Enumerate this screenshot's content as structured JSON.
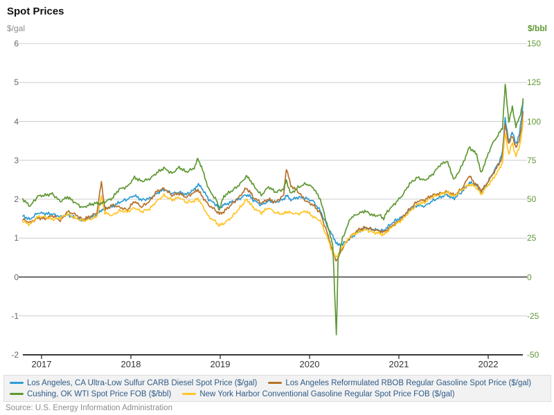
{
  "title": "Spot Prices",
  "axes": {
    "left": {
      "unit_label": "$/gal",
      "tick_labels": [
        "6",
        "5",
        "4",
        "3",
        "2",
        "1",
        "0",
        "-1",
        "-2"
      ]
    },
    "right": {
      "unit_label": "$/bbl",
      "tick_labels": [
        "150",
        "125",
        "100",
        "75",
        "50",
        "25",
        "0",
        "-25",
        "-50"
      ],
      "color": "#5D9732"
    },
    "x": {
      "tick_labels": [
        "2017",
        "2018",
        "2019",
        "2020",
        "2021",
        "2022"
      ]
    }
  },
  "source": "Source: U.S. Energy Information Administration",
  "chart_data": {
    "type": "line",
    "title": "Spot Prices",
    "xlabel": "",
    "ylabel_left": "$/gal",
    "ylabel_right": "$/bbl",
    "xlim": [
      2016.79,
      2022.39
    ],
    "ylim_left": [
      -2,
      6
    ],
    "ylim_right": [
      -50,
      150
    ],
    "grid": true,
    "legend_position": "bottom",
    "legend_rows": [
      [
        0,
        1
      ],
      [
        3,
        2
      ]
    ],
    "x_unit": "decimal year",
    "x": [
      2016.79,
      2016.87,
      2016.96,
      2017.04,
      2017.12,
      2017.21,
      2017.29,
      2017.37,
      2017.46,
      2017.54,
      2017.62,
      2017.67,
      2017.71,
      2017.79,
      2017.87,
      2017.96,
      2018.04,
      2018.12,
      2018.21,
      2018.29,
      2018.37,
      2018.46,
      2018.54,
      2018.62,
      2018.71,
      2018.75,
      2018.79,
      2018.87,
      2018.96,
      2018.99,
      2019.04,
      2019.12,
      2019.21,
      2019.29,
      2019.33,
      2019.37,
      2019.46,
      2019.54,
      2019.62,
      2019.71,
      2019.74,
      2019.79,
      2019.87,
      2019.96,
      2020.04,
      2020.12,
      2020.21,
      2020.26,
      2020.3,
      2020.32,
      2020.37,
      2020.46,
      2020.54,
      2020.62,
      2020.71,
      2020.79,
      2020.83,
      2020.87,
      2020.96,
      2021.04,
      2021.12,
      2021.21,
      2021.29,
      2021.37,
      2021.46,
      2021.54,
      2021.58,
      2021.62,
      2021.71,
      2021.79,
      2021.83,
      2021.87,
      2021.92,
      2021.96,
      2022.04,
      2022.12,
      2022.16,
      2022.19,
      2022.23,
      2022.27,
      2022.31,
      2022.35,
      2022.38,
      2022.39
    ],
    "series": [
      {
        "key": "la_ulsd_carb_diesel",
        "name": "Los Angeles, CA Ultra-Low Sulfur CARB Diesel Spot Price ($/gal)",
        "axis": "left",
        "unit": "$/gal",
        "color": "#2C9BD4",
        "values": [
          1.57,
          1.48,
          1.65,
          1.63,
          1.62,
          1.55,
          1.6,
          1.53,
          1.45,
          1.52,
          1.6,
          1.72,
          1.78,
          1.8,
          1.92,
          2.0,
          2.1,
          1.98,
          2.02,
          2.15,
          2.25,
          2.15,
          2.18,
          2.12,
          2.25,
          2.38,
          2.3,
          2.0,
          1.85,
          1.78,
          1.85,
          1.92,
          2.0,
          2.12,
          2.08,
          1.98,
          1.85,
          1.95,
          1.92,
          2.0,
          2.1,
          1.98,
          2.05,
          2.02,
          1.95,
          1.7,
          1.25,
          1.05,
          0.88,
          0.82,
          0.85,
          1.0,
          1.15,
          1.25,
          1.22,
          1.2,
          1.18,
          1.28,
          1.45,
          1.55,
          1.72,
          1.85,
          1.82,
          1.95,
          2.05,
          2.12,
          2.05,
          2.02,
          2.2,
          2.42,
          2.4,
          2.35,
          2.18,
          2.3,
          2.62,
          2.95,
          3.2,
          4.1,
          3.45,
          3.75,
          3.4,
          3.7,
          4.2,
          4.5
        ]
      },
      {
        "key": "la_rbob_regular_gasoline",
        "name": "Los Angeles Reformulated RBOB Regular Gasoline Spot Price ($/gal)",
        "axis": "left",
        "unit": "$/gal",
        "color": "#B5702A",
        "values": [
          1.48,
          1.4,
          1.52,
          1.5,
          1.58,
          1.45,
          1.68,
          1.62,
          1.48,
          1.55,
          1.65,
          2.45,
          1.72,
          1.85,
          1.8,
          1.72,
          1.95,
          1.8,
          1.95,
          2.2,
          2.28,
          2.1,
          2.15,
          2.05,
          2.18,
          2.25,
          2.1,
          1.85,
          1.7,
          1.62,
          1.68,
          1.85,
          2.05,
          2.28,
          2.2,
          2.05,
          1.9,
          2.0,
          1.92,
          2.1,
          2.8,
          2.35,
          2.2,
          1.95,
          1.85,
          1.65,
          1.05,
          0.65,
          0.42,
          0.5,
          0.75,
          1.05,
          1.2,
          1.28,
          1.22,
          1.18,
          1.15,
          1.22,
          1.38,
          1.52,
          1.75,
          1.95,
          1.98,
          2.1,
          2.15,
          2.2,
          2.15,
          2.1,
          2.28,
          2.62,
          2.45,
          2.38,
          2.22,
          2.32,
          2.6,
          2.9,
          3.1,
          3.95,
          3.4,
          3.65,
          3.3,
          3.55,
          3.95,
          4.25
        ]
      },
      {
        "key": "nyh_conventional_gasoline",
        "name": "New York Harbor Conventional Gasoline Regular Spot Price FOB ($/gal)",
        "axis": "left",
        "unit": "$/gal",
        "color": "#FFC425",
        "values": [
          1.43,
          1.35,
          1.55,
          1.55,
          1.48,
          1.52,
          1.62,
          1.52,
          1.45,
          1.48,
          1.55,
          2.05,
          1.65,
          1.58,
          1.7,
          1.68,
          1.78,
          1.68,
          1.75,
          1.95,
          2.1,
          1.98,
          2.05,
          1.92,
          1.95,
          2.02,
          1.88,
          1.55,
          1.4,
          1.32,
          1.38,
          1.52,
          1.75,
          1.98,
          1.92,
          1.78,
          1.65,
          1.78,
          1.65,
          1.62,
          1.68,
          1.65,
          1.62,
          1.7,
          1.55,
          1.45,
          0.95,
          0.6,
          0.52,
          0.58,
          0.78,
          1.05,
          1.15,
          1.22,
          1.15,
          1.12,
          1.08,
          1.18,
          1.35,
          1.48,
          1.68,
          1.88,
          1.92,
          2.05,
          2.12,
          2.18,
          2.12,
          2.08,
          2.25,
          2.38,
          2.35,
          2.3,
          2.12,
          2.25,
          2.48,
          2.75,
          2.95,
          3.7,
          3.15,
          3.45,
          3.1,
          3.35,
          3.75,
          4.05
        ]
      },
      {
        "key": "cushing_wti_fob",
        "name": "Cushing, OK WTI Spot Price FOB ($/bbl)",
        "axis": "right",
        "unit": "$/bbl",
        "color": "#5D9732",
        "values": [
          50,
          45.5,
          52,
          52.5,
          53.5,
          48.5,
          51.5,
          48,
          44.5,
          46.5,
          47.5,
          47,
          48.5,
          50.5,
          56.5,
          58,
          64,
          61.5,
          63,
          67,
          70,
          66.5,
          70.5,
          67.5,
          70,
          76,
          71,
          56.5,
          49,
          43,
          52,
          55,
          59,
          64.5,
          63,
          59,
          52.5,
          58,
          54.5,
          56.5,
          62,
          53.5,
          57.5,
          60,
          57.5,
          50,
          31,
          21,
          -37.6,
          12,
          25,
          38,
          40.5,
          42.5,
          39.5,
          39.5,
          37.5,
          42,
          47.5,
          52.5,
          60,
          64,
          62,
          65.5,
          72,
          74.5,
          68,
          62.5,
          72,
          83.5,
          81,
          79,
          66.5,
          73,
          85,
          92,
          96,
          123.7,
          100,
          109,
          97,
          102,
          110,
          114.5
        ]
      }
    ]
  }
}
